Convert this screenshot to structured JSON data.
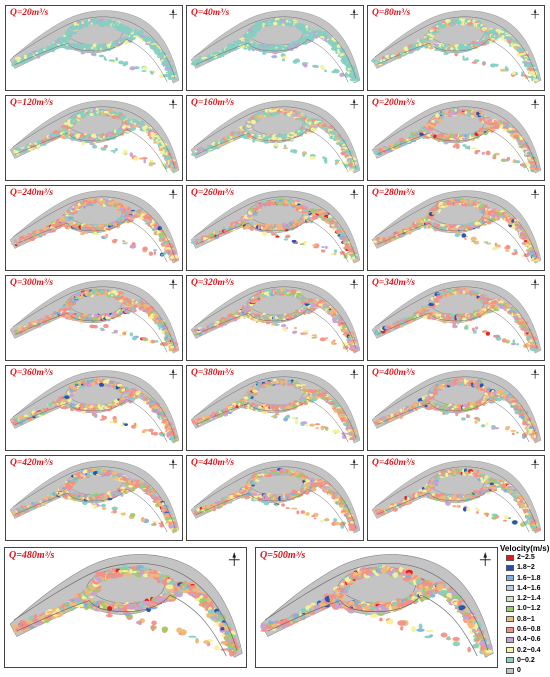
{
  "panels": [
    {
      "label": "Q=20m³/s",
      "level": 0
    },
    {
      "label": "Q=40m³/s",
      "level": 1
    },
    {
      "label": "Q=80m³/s",
      "level": 2
    },
    {
      "label": "Q=120m³/s",
      "level": 3
    },
    {
      "label": "Q=160m³/s",
      "level": 4
    },
    {
      "label": "Q=200m³/s",
      "level": 5
    },
    {
      "label": "Q=240m³/s",
      "level": 6
    },
    {
      "label": "Q=260m³/s",
      "level": 6
    },
    {
      "label": "Q=280m³/s",
      "level": 7
    },
    {
      "label": "Q=300m³/s",
      "level": 7
    },
    {
      "label": "Q=320m³/s",
      "level": 7
    },
    {
      "label": "Q=340m³/s",
      "level": 8
    },
    {
      "label": "Q=360m³/s",
      "level": 8
    },
    {
      "label": "Q=380m³/s",
      "level": 8
    },
    {
      "label": "Q=400m³/s",
      "level": 9
    },
    {
      "label": "Q=420m³/s",
      "level": 9
    },
    {
      "label": "Q=440m³/s",
      "level": 9
    },
    {
      "label": "Q=460m³/s",
      "level": 9
    },
    {
      "label": "Q=480m³/s",
      "level": 10
    },
    {
      "label": "Q=500m³/s",
      "level": 10
    }
  ],
  "legend": {
    "title": "Velocity(m/s)",
    "items": [
      {
        "label": "2~2.5",
        "color": "#e8141b"
      },
      {
        "label": "1.8~2",
        "color": "#1f4eb4"
      },
      {
        "label": "1.6~1.8",
        "color": "#7fb0de"
      },
      {
        "label": "1.4~1.6",
        "color": "#b8cde6"
      },
      {
        "label": "1.2~1.4",
        "color": "#cfe3c4"
      },
      {
        "label": "1.0~1.2",
        "color": "#9ccc6a"
      },
      {
        "label": "0.8~1",
        "color": "#f0b878"
      },
      {
        "label": "0.6~0.8",
        "color": "#f48f86"
      },
      {
        "label": "0.4~0.6",
        "color": "#c6a2d6"
      },
      {
        "label": "0.2~0.4",
        "color": "#f6f29a"
      },
      {
        "label": "0~0.2",
        "color": "#86cfc2"
      },
      {
        "label": "0",
        "color": "#c4c4c4"
      }
    ]
  }
}
